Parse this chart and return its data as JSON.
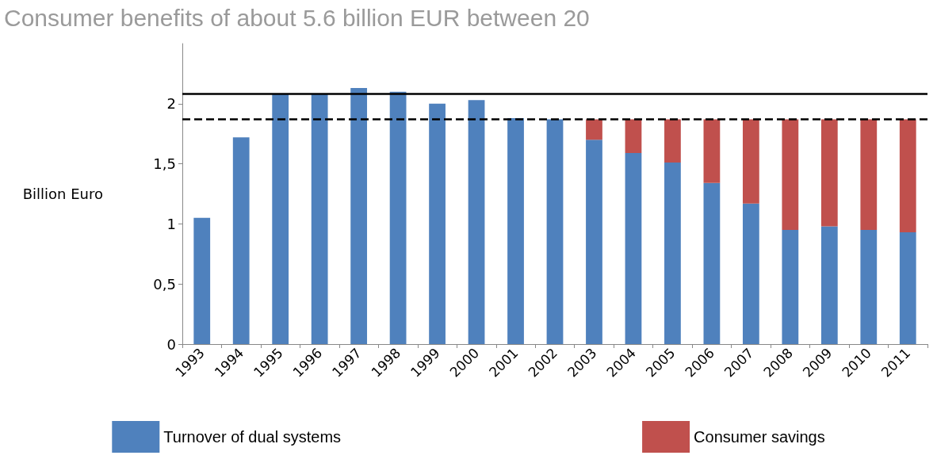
{
  "chart_data": {
    "type": "bar",
    "title": "Consumer benefits of about 5.6 billion EUR between 20",
    "ylabel": "Billion Euro",
    "categories": [
      "1993",
      "1994",
      "1995",
      "1996",
      "1997",
      "1998",
      "1999",
      "2000",
      "2001",
      "2002",
      "2003",
      "2004",
      "2005",
      "2006",
      "2007",
      "2008",
      "2009",
      "2010",
      "2011"
    ],
    "stacked": true,
    "series": [
      {
        "name": "Turnover of dual systems",
        "color": "#4f81bd",
        "values": [
          1.05,
          1.72,
          2.08,
          2.08,
          2.13,
          2.1,
          2.0,
          2.03,
          1.88,
          1.87,
          1.7,
          1.59,
          1.51,
          1.34,
          1.17,
          0.95,
          0.98,
          0.95,
          0.93
        ]
      },
      {
        "name": "Consumer savings",
        "color": "#c0504d",
        "values": [
          null,
          null,
          null,
          null,
          null,
          null,
          null,
          null,
          null,
          null,
          0.17,
          0.28,
          0.36,
          0.53,
          0.7,
          0.92,
          0.89,
          0.92,
          0.94
        ]
      }
    ],
    "ylim": [
      0,
      2.5
    ],
    "yticks": [
      0,
      {
        "value": 0.5,
        "label": "0,5"
      },
      1,
      {
        "value": 1.5,
        "label": "1,5"
      },
      2
    ],
    "ref_lines": [
      {
        "axis": "y",
        "value": 2.08,
        "color": "#000000",
        "line_style": "solid"
      },
      {
        "axis": "y",
        "value": 1.87,
        "color": "#000000",
        "line_style": "dashed"
      }
    ],
    "grid": false,
    "legend": "bottom"
  }
}
